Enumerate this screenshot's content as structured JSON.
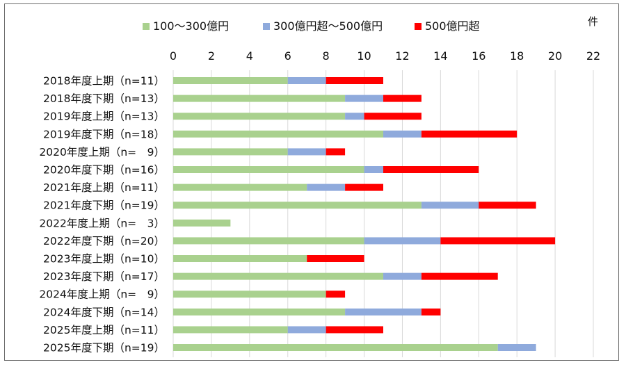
{
  "chart_data": {
    "type": "bar",
    "orientation": "horizontal",
    "stacked": true,
    "unit_label": "件",
    "categories": [
      "2018年度上期（n=11）",
      "2018年度下期（n=13）",
      "2019年度上期（n=13）",
      "2019年度下期（n=18）",
      "2020年度上期（n=　9）",
      "2020年度下期（n=16）",
      "2021年度上期（n=11）",
      "2021年度下期（n=19）",
      "2022年度上期（n=　3）",
      "2022年度下期（n=20）",
      "2023年度上期（n=10）",
      "2023年度下期（n=17）",
      "2024年度上期（n=　9）",
      "2024年度下期（n=14）",
      "2025年度上期（n=11）",
      "2025年度下期（n=19）"
    ],
    "series": [
      {
        "name": "100～300億円",
        "color": "#a9d18e",
        "values": [
          6,
          9,
          9,
          11,
          6,
          10,
          7,
          13,
          3,
          10,
          7,
          11,
          8,
          9,
          6,
          17
        ]
      },
      {
        "name": "300億円超～500億円",
        "color": "#8faadc",
        "values": [
          2,
          2,
          1,
          2,
          2,
          1,
          2,
          3,
          0,
          4,
          0,
          2,
          0,
          4,
          2,
          2
        ]
      },
      {
        "name": "500億円超",
        "color": "#ff0000",
        "values": [
          3,
          2,
          3,
          5,
          1,
          5,
          2,
          3,
          0,
          6,
          3,
          4,
          1,
          1,
          3,
          0
        ]
      }
    ],
    "xlim": [
      0,
      22
    ],
    "xticks": [
      0,
      2,
      4,
      6,
      8,
      10,
      12,
      14,
      16,
      18,
      20,
      22
    ],
    "grid": true,
    "legend_position": "top"
  }
}
